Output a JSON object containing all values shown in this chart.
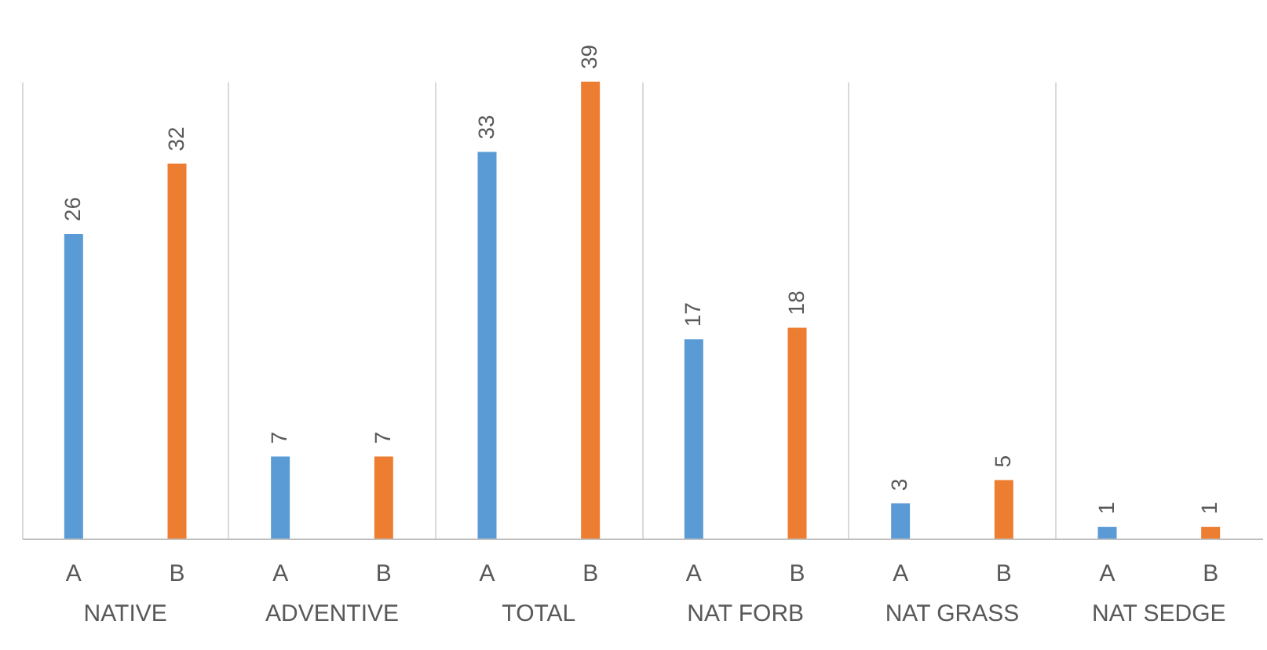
{
  "chart_data": {
    "type": "bar",
    "categories": [
      "NATIVE",
      "ADVENTIVE",
      "TOTAL",
      "NAT FORB",
      "NAT GRASS",
      "NAT SEDGE"
    ],
    "series": [
      {
        "name": "A",
        "color": "#5b9bd5",
        "values": [
          26,
          7,
          33,
          17,
          3,
          1
        ]
      },
      {
        "name": "B",
        "color": "#ed7d31",
        "values": [
          32,
          7,
          39,
          18,
          5,
          1
        ]
      }
    ],
    "data_labels": true,
    "grid": "x",
    "legend": false
  }
}
